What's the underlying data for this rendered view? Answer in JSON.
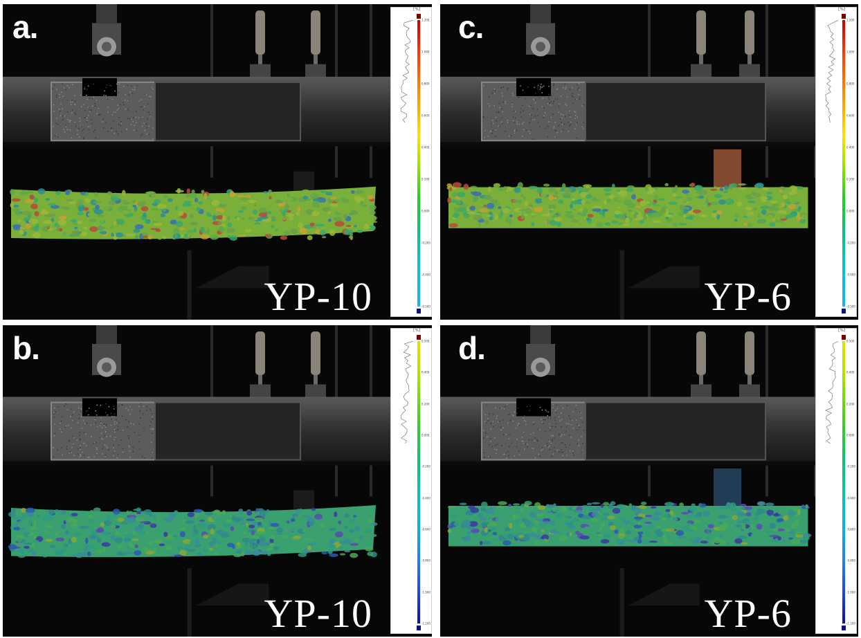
{
  "panels": [
    {
      "label": "a.",
      "specimen": "YP-10",
      "legend_unit": "[%]",
      "legend_ticks": [
        "1.200",
        "1.000",
        "0.800",
        "0.600",
        "0.400",
        "0.200",
        "0.000",
        "-0.200",
        "-0.400",
        "-0.500"
      ],
      "legend_scale": "rainbow-full",
      "overlay": "warm-strain"
    },
    {
      "label": "c.",
      "specimen": "YP-6",
      "legend_unit": "[%]",
      "legend_ticks": [
        "1.200",
        "1.000",
        "0.800",
        "0.600",
        "0.400",
        "0.200",
        "0.000",
        "-0.200",
        "-0.400",
        "-0.500"
      ],
      "legend_scale": "rainbow-full",
      "overlay": "warm-strain"
    },
    {
      "label": "b.",
      "specimen": "YP-10",
      "legend_unit": "[%]",
      "legend_ticks": [
        "0.500",
        "0.400",
        "0.200",
        "0.000",
        "-0.200",
        "-0.400",
        "-0.600",
        "-0.800",
        "-1.000",
        "-1.100"
      ],
      "legend_scale": "rainbow-cool",
      "overlay": "cool-strain"
    },
    {
      "label": "d.",
      "specimen": "YP-6",
      "legend_unit": "[%]",
      "legend_ticks": [
        "0.500",
        "0.400",
        "0.200",
        "0.000",
        "-0.200",
        "-0.400",
        "-0.600",
        "-0.800",
        "-1.000",
        "-1.100"
      ],
      "legend_scale": "rainbow-cool",
      "overlay": "cool-strain"
    }
  ],
  "colors": {
    "background": "#050505",
    "divider": "#ffffff",
    "legend_top_cap": "#7a0000",
    "legend_bottom_cap": "#101080"
  }
}
